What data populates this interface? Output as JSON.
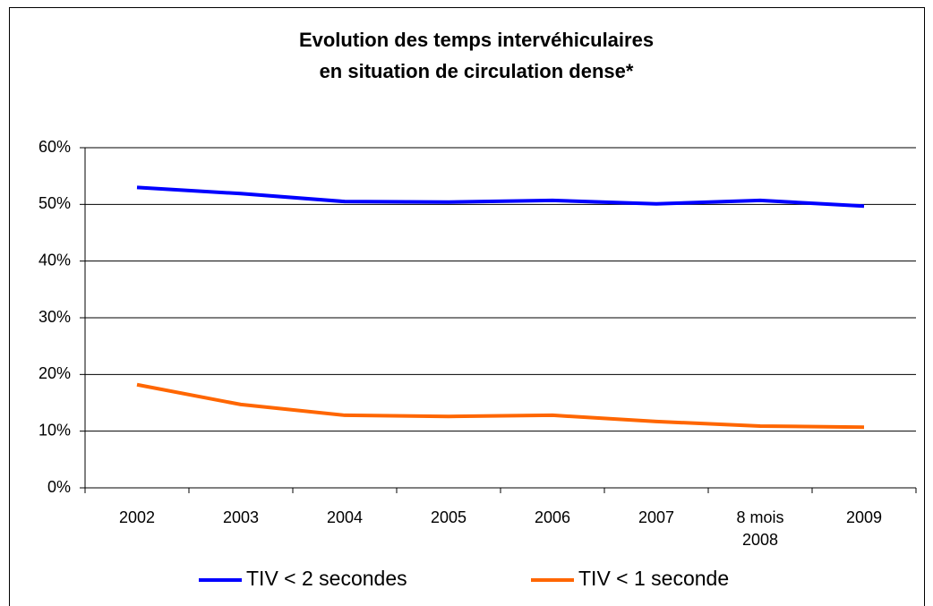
{
  "chart_data": {
    "type": "line",
    "title": [
      "Evolution des temps intervéhiculaires",
      "en situation de circulation dense*"
    ],
    "categories": [
      "2002",
      "2003",
      "2004",
      "2005",
      "2006",
      "2007",
      "8 mois 2008",
      "2009"
    ],
    "series": [
      {
        "name": "TIV < 2 secondes",
        "color": "#0000ff",
        "values": [
          53.0,
          51.9,
          50.5,
          50.4,
          50.7,
          50.1,
          50.7,
          49.7
        ]
      },
      {
        "name": "TIV < 1 seconde",
        "color": "#ff6600",
        "values": [
          18.2,
          14.7,
          12.8,
          12.6,
          12.8,
          11.7,
          10.9,
          10.7
        ]
      }
    ],
    "ylim": [
      0,
      60
    ],
    "yticks": [
      {
        "value": 0,
        "label": "0%"
      },
      {
        "value": 10,
        "label": "10%"
      },
      {
        "value": 20,
        "label": "20%"
      },
      {
        "value": 30,
        "label": "30%"
      },
      {
        "value": 40,
        "label": "40%"
      },
      {
        "value": 50,
        "label": "50%"
      },
      {
        "value": 60,
        "label": "60%"
      }
    ],
    "grid": true,
    "legend": "bottom"
  }
}
